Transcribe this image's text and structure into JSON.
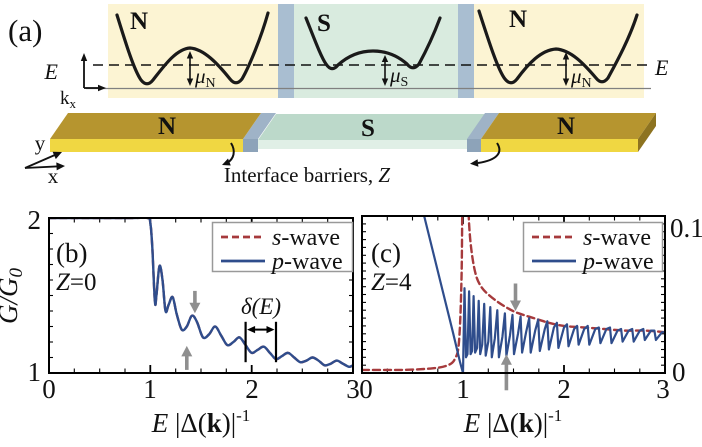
{
  "figure": {
    "colors": {
      "band_yellow": "#fcf4d3",
      "band_green": "#d9ebdf",
      "barrier": "#a9bed1",
      "gold_top": "#b6952f",
      "gold_front": "#f0d742",
      "gold_side": "#8d7320",
      "s_top": "#bcd9ca",
      "s_front": "#e0efe6",
      "barrier3d_top": "#9fb3c7",
      "barrier3d_front": "#8da3b9",
      "arrow_gray": "#8f8f8f",
      "swave_red": "#a63a3c",
      "pwave_blue": "#2f4d8c"
    },
    "panel_a": {
      "label": "(a)",
      "band_labels": [
        "N",
        "S",
        "N"
      ],
      "slab_labels": [
        "N",
        "S",
        "N"
      ],
      "e_axis_label": "E",
      "k_axis_label": "k",
      "k_axis_sub": "x",
      "dashed_label_e": "E",
      "mu_base": "μ",
      "mu_sub_n": "N",
      "mu_sub_s": "S",
      "coord_y": "y",
      "coord_x": "x",
      "caption_main": "Interface barriers, ",
      "caption_z": "Z"
    }
  },
  "chart_data": [
    {
      "type": "line",
      "panel_label": "(b)",
      "z_label": {
        "z": "Z",
        "value": "=0"
      },
      "xlabel_parts": {
        "e": "E",
        "open": " |Δ(",
        "k": "k",
        "close": ")|",
        "sup": "-1"
      },
      "ylabel_parts": {
        "main": "G/G",
        "sub": "0"
      },
      "xlim": [
        0,
        3
      ],
      "ylim": [
        1,
        2
      ],
      "xticks": [
        0,
        1,
        2,
        3
      ],
      "xticklabels": [
        "0",
        "1",
        "2",
        "3"
      ],
      "yticks": [
        1,
        2
      ],
      "yticklabels": [
        "1",
        "2"
      ],
      "x_minor_step": 0.25,
      "y_minor_step": 0.1,
      "grid": false,
      "legend_position": "upper right",
      "legend": [
        {
          "label_it": "s",
          "label_rest": "-wave",
          "color": "#a63a3c",
          "dash": "7,4"
        },
        {
          "label_it": "p",
          "label_rest": "-wave",
          "color": "#2f4d8c",
          "dash": "none"
        }
      ],
      "delta_annotation": {
        "label": "δ(E)",
        "x1": 1.94,
        "x2": 2.24,
        "tick_top": 1.33,
        "tick_bottom": 1.07,
        "arrow_y": 1.28
      },
      "arrows": [
        {
          "x": 1.36,
          "y_from": 1.02,
          "y_to": 1.175
        },
        {
          "x": 1.44,
          "y_from": 1.53,
          "y_to": 1.385
        }
      ],
      "series": [
        {
          "name": "s-wave",
          "color": "#a63a3c",
          "dash": "7,4",
          "width": 2.4,
          "smooth": true,
          "x": [
            0,
            0.8,
            0.97,
            1,
            1.02,
            1.045,
            1.06,
            1.09,
            1.12,
            1.15,
            1.18,
            1.22,
            1.26,
            1.31,
            1.36,
            1.41,
            1.46,
            1.52,
            1.58,
            1.64,
            1.7,
            1.76,
            1.82,
            1.88,
            1.94,
            2,
            2.06,
            2.12,
            2.18,
            2.24,
            2.3,
            2.36,
            2.42,
            2.48,
            2.54,
            2.6,
            2.66,
            2.72,
            2.78,
            2.84,
            2.9,
            2.96,
            3
          ],
          "y": [
            2,
            2,
            2,
            1.97,
            1.8,
            1.46,
            1.5,
            1.69,
            1.6,
            1.4,
            1.44,
            1.49,
            1.38,
            1.28,
            1.3,
            1.37,
            1.33,
            1.23,
            1.25,
            1.3,
            1.24,
            1.18,
            1.2,
            1.23,
            1.18,
            1.13,
            1.15,
            1.17,
            1.13,
            1.09,
            1.11,
            1.13,
            1.1,
            1.07,
            1.08,
            1.1,
            1.08,
            1.05,
            1.06,
            1.08,
            1.06,
            1.04,
            1.05
          ]
        },
        {
          "name": "p-wave",
          "color": "#2f4d8c",
          "dash": "none",
          "width": 2.4,
          "smooth": true,
          "x": [
            0,
            0.8,
            0.97,
            1,
            1.02,
            1.045,
            1.06,
            1.09,
            1.12,
            1.15,
            1.18,
            1.22,
            1.26,
            1.31,
            1.36,
            1.41,
            1.46,
            1.52,
            1.58,
            1.64,
            1.7,
            1.76,
            1.82,
            1.88,
            1.94,
            2,
            2.06,
            2.12,
            2.18,
            2.24,
            2.3,
            2.36,
            2.42,
            2.48,
            2.54,
            2.6,
            2.66,
            2.72,
            2.78,
            2.84,
            2.9,
            2.96,
            3
          ],
          "y": [
            2,
            2,
            2,
            1.97,
            1.8,
            1.46,
            1.5,
            1.69,
            1.6,
            1.4,
            1.44,
            1.49,
            1.38,
            1.28,
            1.3,
            1.37,
            1.33,
            1.23,
            1.25,
            1.3,
            1.24,
            1.18,
            1.2,
            1.23,
            1.18,
            1.13,
            1.15,
            1.17,
            1.13,
            1.09,
            1.11,
            1.13,
            1.1,
            1.07,
            1.08,
            1.1,
            1.08,
            1.05,
            1.06,
            1.08,
            1.06,
            1.04,
            1.05
          ]
        }
      ]
    },
    {
      "type": "line",
      "panel_label": "(c)",
      "z_label": {
        "z": "Z",
        "value": "=4"
      },
      "xlabel_parts": {
        "e": "E",
        "open": " |Δ(",
        "k": "k",
        "close": ")|",
        "sup": "-1"
      },
      "xlim": [
        0,
        3
      ],
      "ylim": [
        0,
        0.1
      ],
      "xticks": [
        0,
        1,
        2,
        3
      ],
      "xticklabels": [
        "0",
        "1",
        "2",
        "3"
      ],
      "yticks": [
        0,
        0.1
      ],
      "yticklabels": [
        "0",
        "0.1"
      ],
      "y_axis_side": "right",
      "x_minor_step": 0.25,
      "y_minor_step": 0.005,
      "grid": false,
      "legend_position": "upper right",
      "legend": [
        {
          "label_it": "s",
          "label_rest": "-wave",
          "color": "#a63a3c",
          "dash": "7,4"
        },
        {
          "label_it": "p",
          "label_rest": "-wave",
          "color": "#2f4d8c",
          "dash": "none"
        }
      ],
      "arrows": [
        {
          "x": 1.43,
          "y_from": -0.011,
          "y_to": 0.012
        },
        {
          "x": 1.52,
          "y_from": 0.057,
          "y_to": 0.0395
        }
      ],
      "series": [
        {
          "name": "s-wave",
          "color": "#a63a3c",
          "dash": "7,4",
          "width": 2.4,
          "smooth": true,
          "x": [
            0,
            0.4,
            0.7,
            0.85,
            0.92,
            0.96,
            0.985,
            1,
            1.04,
            1.06,
            1.09,
            1.13,
            1.18,
            1.25,
            1.35,
            1.45,
            1.55,
            1.7,
            1.85,
            2,
            2.2,
            2.4,
            2.6,
            2.8,
            3
          ],
          "y": [
            0.002,
            0.002,
            0.003,
            0.005,
            0.009,
            0.02,
            0.06,
            0.13,
            0.13,
            0.095,
            0.075,
            0.062,
            0.055,
            0.05,
            0.045,
            0.041,
            0.038,
            0.035,
            0.032,
            0.03,
            0.029,
            0.028,
            0.027,
            0.027,
            0.026
          ]
        },
        {
          "name": "p-wave",
          "color": "#2f4d8c",
          "dash": "none",
          "width": 2.2,
          "smooth": false,
          "x": [
            0.6,
            0.7,
            0.8,
            0.9,
            0.97,
            1,
            1.015,
            1.03,
            1.045,
            1.06,
            1.075,
            1.09,
            1.105,
            1.12,
            1.14,
            1.155,
            1.17,
            1.19,
            1.21,
            1.225,
            1.25,
            1.27,
            1.285,
            1.315,
            1.34,
            1.355,
            1.39,
            1.415,
            1.43,
            1.465,
            1.49,
            1.505,
            1.545,
            1.57,
            1.585,
            1.625,
            1.655,
            1.67,
            1.715,
            1.745,
            1.76,
            1.81,
            1.835,
            1.85,
            1.9,
            1.93,
            1.945,
            2,
            2.03,
            2.045,
            2.1,
            2.13,
            2.145,
            2.2,
            2.235,
            2.25,
            2.31,
            2.345,
            2.36,
            2.42,
            2.455,
            2.47,
            2.53,
            2.565,
            2.58,
            2.64,
            2.675,
            2.69,
            2.75,
            2.785,
            2.8,
            2.86,
            2.895,
            2.91,
            2.97,
            3
          ],
          "y": [
            0.104,
            0.078,
            0.052,
            0.026,
            0.007,
            0,
            0.054,
            0.01,
            0.012,
            0.052,
            0.012,
            0.014,
            0.049,
            0.013,
            0.016,
            0.046,
            0.012,
            0.018,
            0.044,
            0.011,
            0.02,
            0.042,
            0.01,
            0.022,
            0.04,
            0.01,
            0.023,
            0.038,
            0.011,
            0.024,
            0.037,
            0.012,
            0.025,
            0.036,
            0.013,
            0.026,
            0.035,
            0.013,
            0.027,
            0.034,
            0.014,
            0.028,
            0.033,
            0.015,
            0.029,
            0.032,
            0.016,
            0.029,
            0.031,
            0.017,
            0.028,
            0.03,
            0.018,
            0.028,
            0.03,
            0.018,
            0.028,
            0.029,
            0.019,
            0.028,
            0.029,
            0.019,
            0.027,
            0.028,
            0.02,
            0.027,
            0.028,
            0.02,
            0.027,
            0.028,
            0.021,
            0.027,
            0.027,
            0.021,
            0.026,
            0.026
          ]
        }
      ]
    }
  ]
}
